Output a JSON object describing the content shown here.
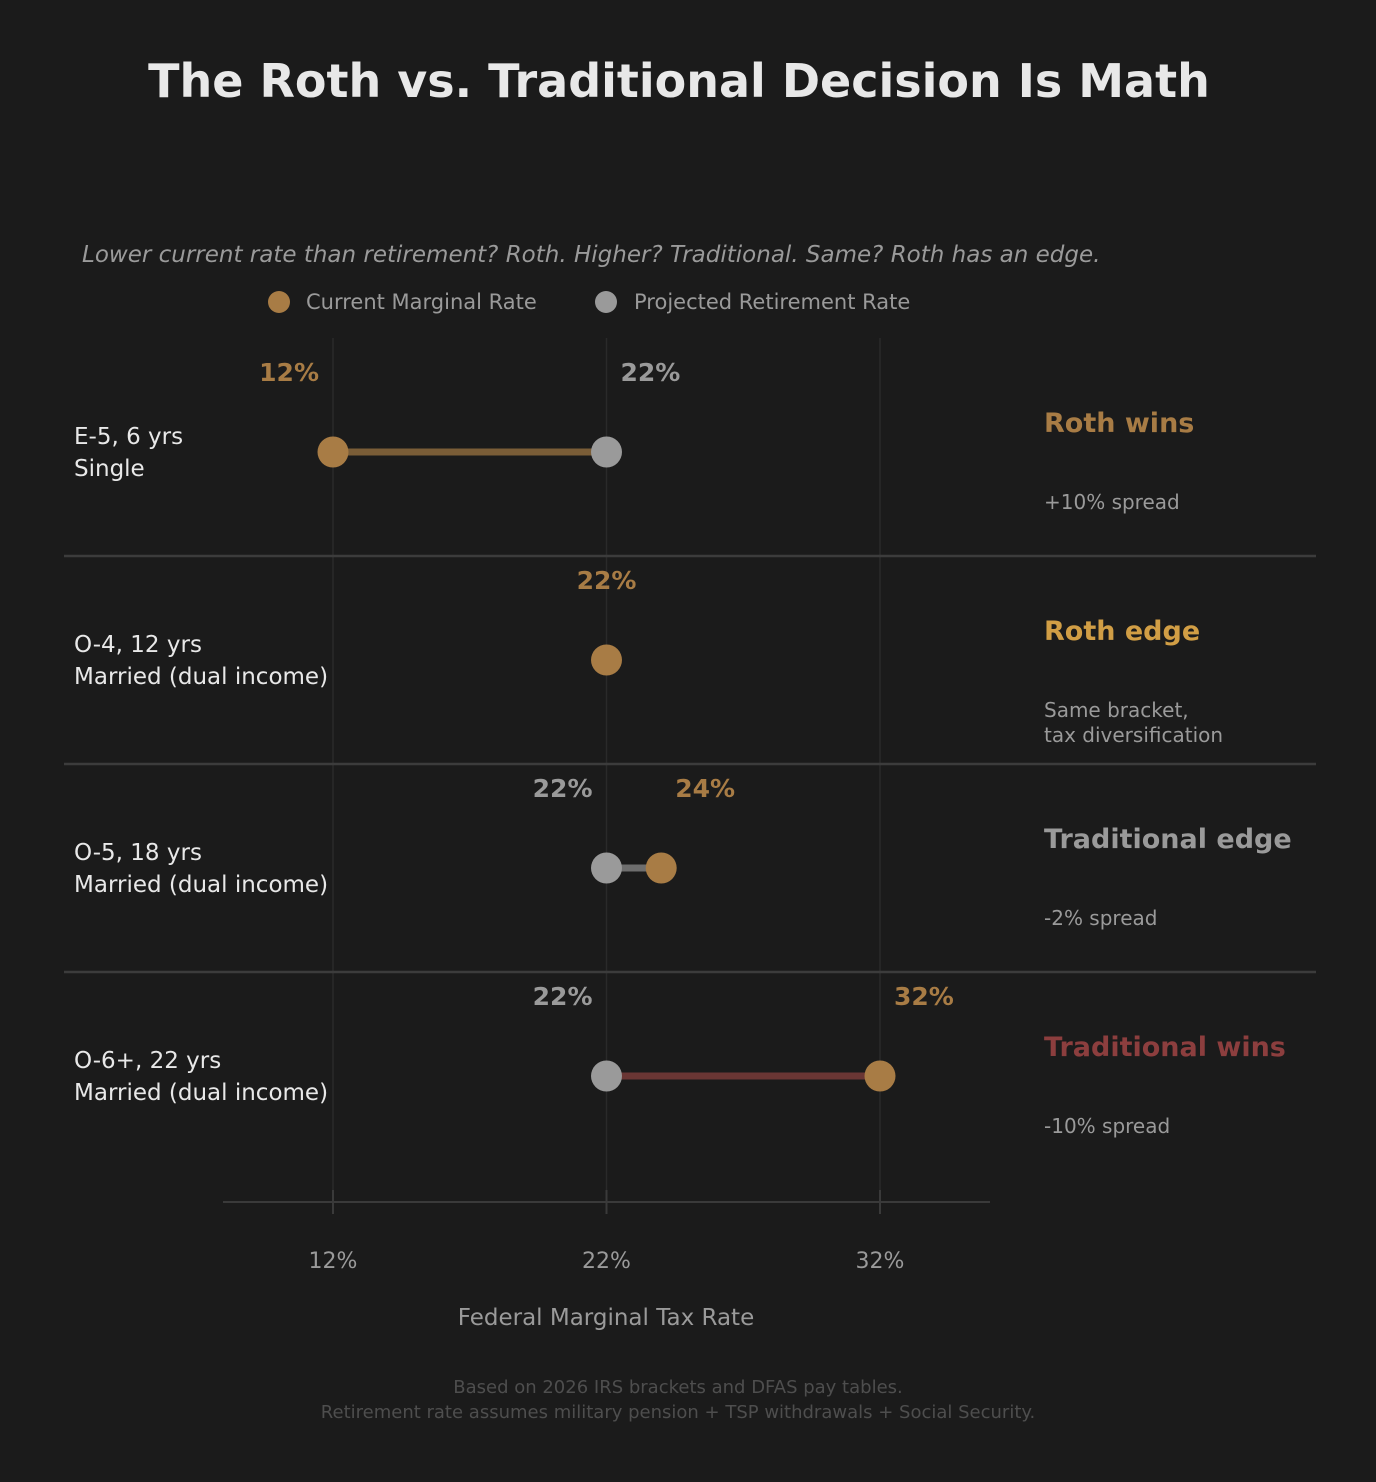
{
  "colors": {
    "background": "#1b1b1b",
    "current": "#a87c45",
    "projected": "#9a9a9a",
    "title": "#e8e8e8",
    "row_label": "#e8e8e8",
    "muted": "#9a9a9a",
    "footnote": "#4e4e4e",
    "divider": "#3c3c3c",
    "grid": "#2a2a2a",
    "axis": "#3a3a3a"
  },
  "chart_data": {
    "type": "dumbbell",
    "title": "The Roth vs. Traditional Decision Is Math",
    "subtitle": "Lower current rate than retirement? Roth. Higher? Traditional. Same? Roth has an edge.",
    "xlabel": "Federal Marginal Tax Rate",
    "xlim": [
      8,
      36
    ],
    "xticks": [
      12,
      22,
      32
    ],
    "xtick_labels": [
      "12%",
      "22%",
      "32%"
    ],
    "grid": "vertical",
    "legend": {
      "placement": "top",
      "entries": [
        {
          "key": "current",
          "label": "Current Marginal Rate",
          "color": "#a87c45"
        },
        {
          "key": "projected",
          "label": "Projected Retirement Rate",
          "color": "#9a9a9a"
        }
      ]
    },
    "rows": [
      {
        "label_line1": "E-5, 6 yrs",
        "label_line2": "Single",
        "current": 12,
        "projected": 22,
        "current_label": "12%",
        "projected_label": "22%",
        "verdict": "Roth wins",
        "verdict_color": "#a87c45",
        "connector_color": "#7a5d37",
        "note_lines": [
          "+10% spread"
        ]
      },
      {
        "label_line1": "O-4, 12 yrs",
        "label_line2": "Married (dual income)",
        "current": 22,
        "projected": 22,
        "current_label": "22%",
        "projected_label": "",
        "verdict": "Roth edge",
        "verdict_color": "#d19e45",
        "connector_color": "#7a5d37",
        "note_lines": [
          "Same bracket,",
          "tax diversification"
        ]
      },
      {
        "label_line1": "O-5, 18 yrs",
        "label_line2": "Married (dual income)",
        "current": 24,
        "projected": 22,
        "current_label": "24%",
        "projected_label": "22%",
        "verdict": "Traditional edge",
        "verdict_color": "#9a9a9a",
        "connector_color": "#6e6e6e",
        "note_lines": [
          "-2% spread"
        ]
      },
      {
        "label_line1": "O-6+, 22 yrs",
        "label_line2": "Married (dual income)",
        "current": 32,
        "projected": 22,
        "current_label": "32%",
        "projected_label": "22%",
        "verdict": "Traditional wins",
        "verdict_color": "#8c3e3e",
        "connector_color": "#6a3634",
        "note_lines": [
          "-10% spread"
        ]
      }
    ],
    "footnote_lines": [
      "Based on 2026 IRS brackets and DFAS pay tables.",
      "Retirement rate assumes military pension + TSP withdrawals + Social Security."
    ]
  }
}
